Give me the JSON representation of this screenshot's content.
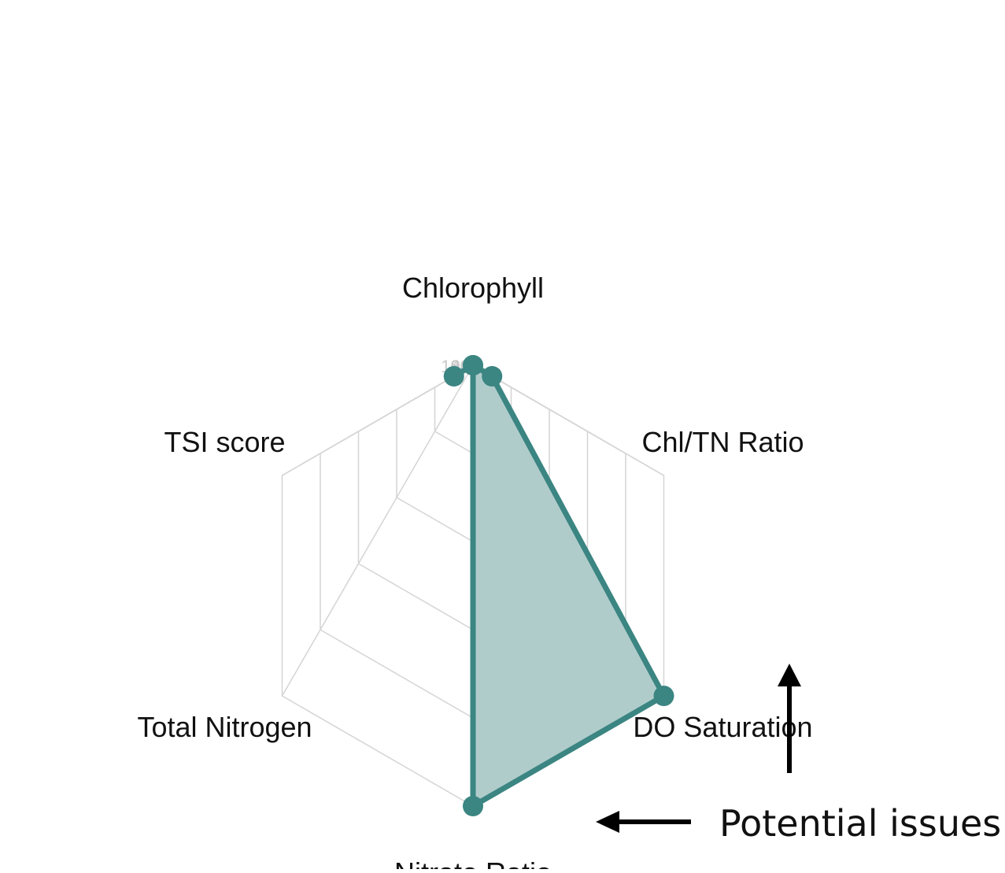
{
  "chart_data": {
    "type": "radar",
    "axes": [
      "Chlorophyll",
      "Chl/TN Ratio",
      "DO Saturation",
      "Nitrate Ratio",
      "Total Nitrogen",
      "TSI score"
    ],
    "values": [
      0,
      10,
      100,
      100,
      0,
      10
    ],
    "rlim": [
      0,
      100
    ],
    "ticks": [
      "0",
      "20",
      "40",
      "60",
      "80",
      "100"
    ],
    "grid": true,
    "grid_shape": "hexagon",
    "colors": {
      "series": "#3b8582",
      "fill": "#afcccb",
      "grid": "#d4d4d4",
      "tick_text": "#c8c8c8"
    }
  },
  "annotations": [
    {
      "text": "Potential issues",
      "points_to": [
        "Nitrate Ratio",
        "DO Saturation"
      ]
    }
  ]
}
